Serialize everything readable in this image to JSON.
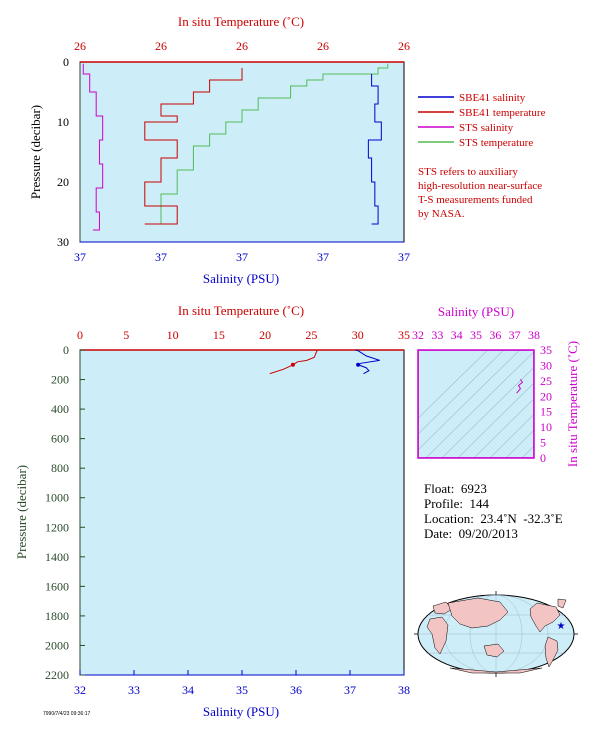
{
  "chart_data": [
    {
      "type": "line",
      "top_axis_label": "In situ Temperature (˚C)",
      "top_ticks": [
        "26",
        "26",
        "26",
        "26",
        "26"
      ],
      "ylabel": "Pressure (decibar)",
      "yticks": [
        "0",
        "10",
        "20",
        "30"
      ],
      "ylim": [
        0,
        30
      ],
      "xlabel": "Salinity (PSU)",
      "bottom_ticks": [
        "37",
        "37",
        "37",
        "37",
        "37"
      ],
      "legend_position": "right",
      "legend": [
        {
          "name": "SBE41 salinity",
          "color": "#0000cc"
        },
        {
          "name": "SBE41 temperature",
          "color": "#cc0000"
        },
        {
          "name": "STS salinity",
          "color": "#cc00cc"
        },
        {
          "name": "STS temperature",
          "color": "#55bb55"
        }
      ],
      "note": [
        "STS refers to auxiliary",
        "high-resolution near-surface",
        "T-S measurements funded",
        "by NASA."
      ],
      "series": [
        {
          "name": "STS temperature",
          "x_fraction": [
            0.95,
            0.92,
            0.75,
            0.7,
            0.65,
            0.55,
            0.5,
            0.45,
            0.4,
            0.35,
            0.3,
            0.25,
            0.2
          ],
          "pressure": [
            0.3,
            1,
            2,
            3,
            4,
            6,
            8,
            10,
            12,
            14,
            18,
            22,
            27
          ]
        },
        {
          "name": "SBE41 temperature",
          "x_fraction": [
            0.5,
            0.4,
            0.35,
            0.25,
            0.3,
            0.2,
            0.3,
            0.25,
            0.2,
            0.3,
            0.2
          ],
          "pressure": [
            1,
            3,
            5,
            7,
            9,
            10,
            13,
            16,
            20,
            24,
            27
          ]
        },
        {
          "name": "SBE41 salinity",
          "x_fraction": [
            0.9,
            0.92,
            0.91,
            0.93,
            0.89,
            0.9,
            0.91,
            0.92,
            0.9
          ],
          "pressure": [
            2,
            4,
            7,
            10,
            13,
            16,
            20,
            24,
            27
          ]
        },
        {
          "name": "STS salinity",
          "x_fraction": [
            0.01,
            0.03,
            0.05,
            0.07,
            0.06,
            0.07,
            0.05,
            0.06,
            0.04
          ],
          "pressure": [
            0.3,
            2,
            5,
            9,
            13,
            17,
            21,
            25,
            28
          ]
        }
      ]
    },
    {
      "type": "line",
      "top_axis_label": "In situ Temperature (˚C)",
      "top_ticks": [
        "0",
        "5",
        "10",
        "15",
        "20",
        "25",
        "30",
        "35"
      ],
      "xlim_temperature": [
        0,
        35
      ],
      "ylabel": "Pressure (decibar)",
      "yticks": [
        "0",
        "200",
        "400",
        "600",
        "800",
        "1000",
        "1200",
        "1400",
        "1600",
        "1800",
        "2000",
        "2200"
      ],
      "ylim": [
        0,
        2200
      ],
      "xlabel": "Salinity (PSU)",
      "bottom_ticks": [
        "32",
        "33",
        "34",
        "35",
        "36",
        "37",
        "38"
      ],
      "xlim_salinity": [
        32,
        38
      ],
      "series": [
        {
          "name": "temperature",
          "color": "#cc0000",
          "temperature": [
            25.6,
            25.6,
            25.3,
            24.5,
            23.5,
            23.0,
            22.0,
            20.5
          ],
          "pressure": [
            0,
            5,
            50,
            70,
            80,
            100,
            130,
            160
          ]
        },
        {
          "name": "salinity",
          "color": "#0000cc",
          "salinity": [
            37.1,
            37.15,
            37.3,
            37.55,
            37.2,
            37.15,
            37.3,
            37.35,
            37.25
          ],
          "pressure": [
            0,
            5,
            40,
            70,
            90,
            100,
            120,
            140,
            160
          ]
        }
      ]
    },
    {
      "type": "scatter",
      "top_axis_label": "Salinity (PSU)",
      "xticks": [
        "32",
        "33",
        "34",
        "35",
        "36",
        "37",
        "38"
      ],
      "xlim": [
        32,
        38
      ],
      "right_axis_label": "In situ Temperature (˚C)",
      "yticks": [
        "0",
        "5",
        "10",
        "15",
        "20",
        "25",
        "30",
        "35"
      ],
      "ylim": [
        0,
        35
      ],
      "points": {
        "salinity": [
          37.3,
          37.4,
          37.2,
          37.3,
          37.1
        ],
        "temperature": [
          25.5,
          24.5,
          23.5,
          22.5,
          21.0
        ]
      }
    }
  ],
  "info": {
    "float": "Float:  6923",
    "profile": "Profile:  144",
    "location": "Location:  23.4˚N  -32.3˚E",
    "date": "Date:  09/20/2013"
  },
  "credit": "7990/7/4/23 09:36:17",
  "colors": {
    "temperature": "#cc0000",
    "salinity": "#0000cc",
    "sts_salinity": "#cc00cc",
    "sts_temperature": "#55bb55",
    "pressure_axis": "#2a4a2a",
    "plot_bg": "#cdeef9",
    "tsbox_text": "#cc00cc"
  },
  "map": {
    "marker": "star",
    "marker_lon": -32.3,
    "marker_lat": 23.4
  }
}
